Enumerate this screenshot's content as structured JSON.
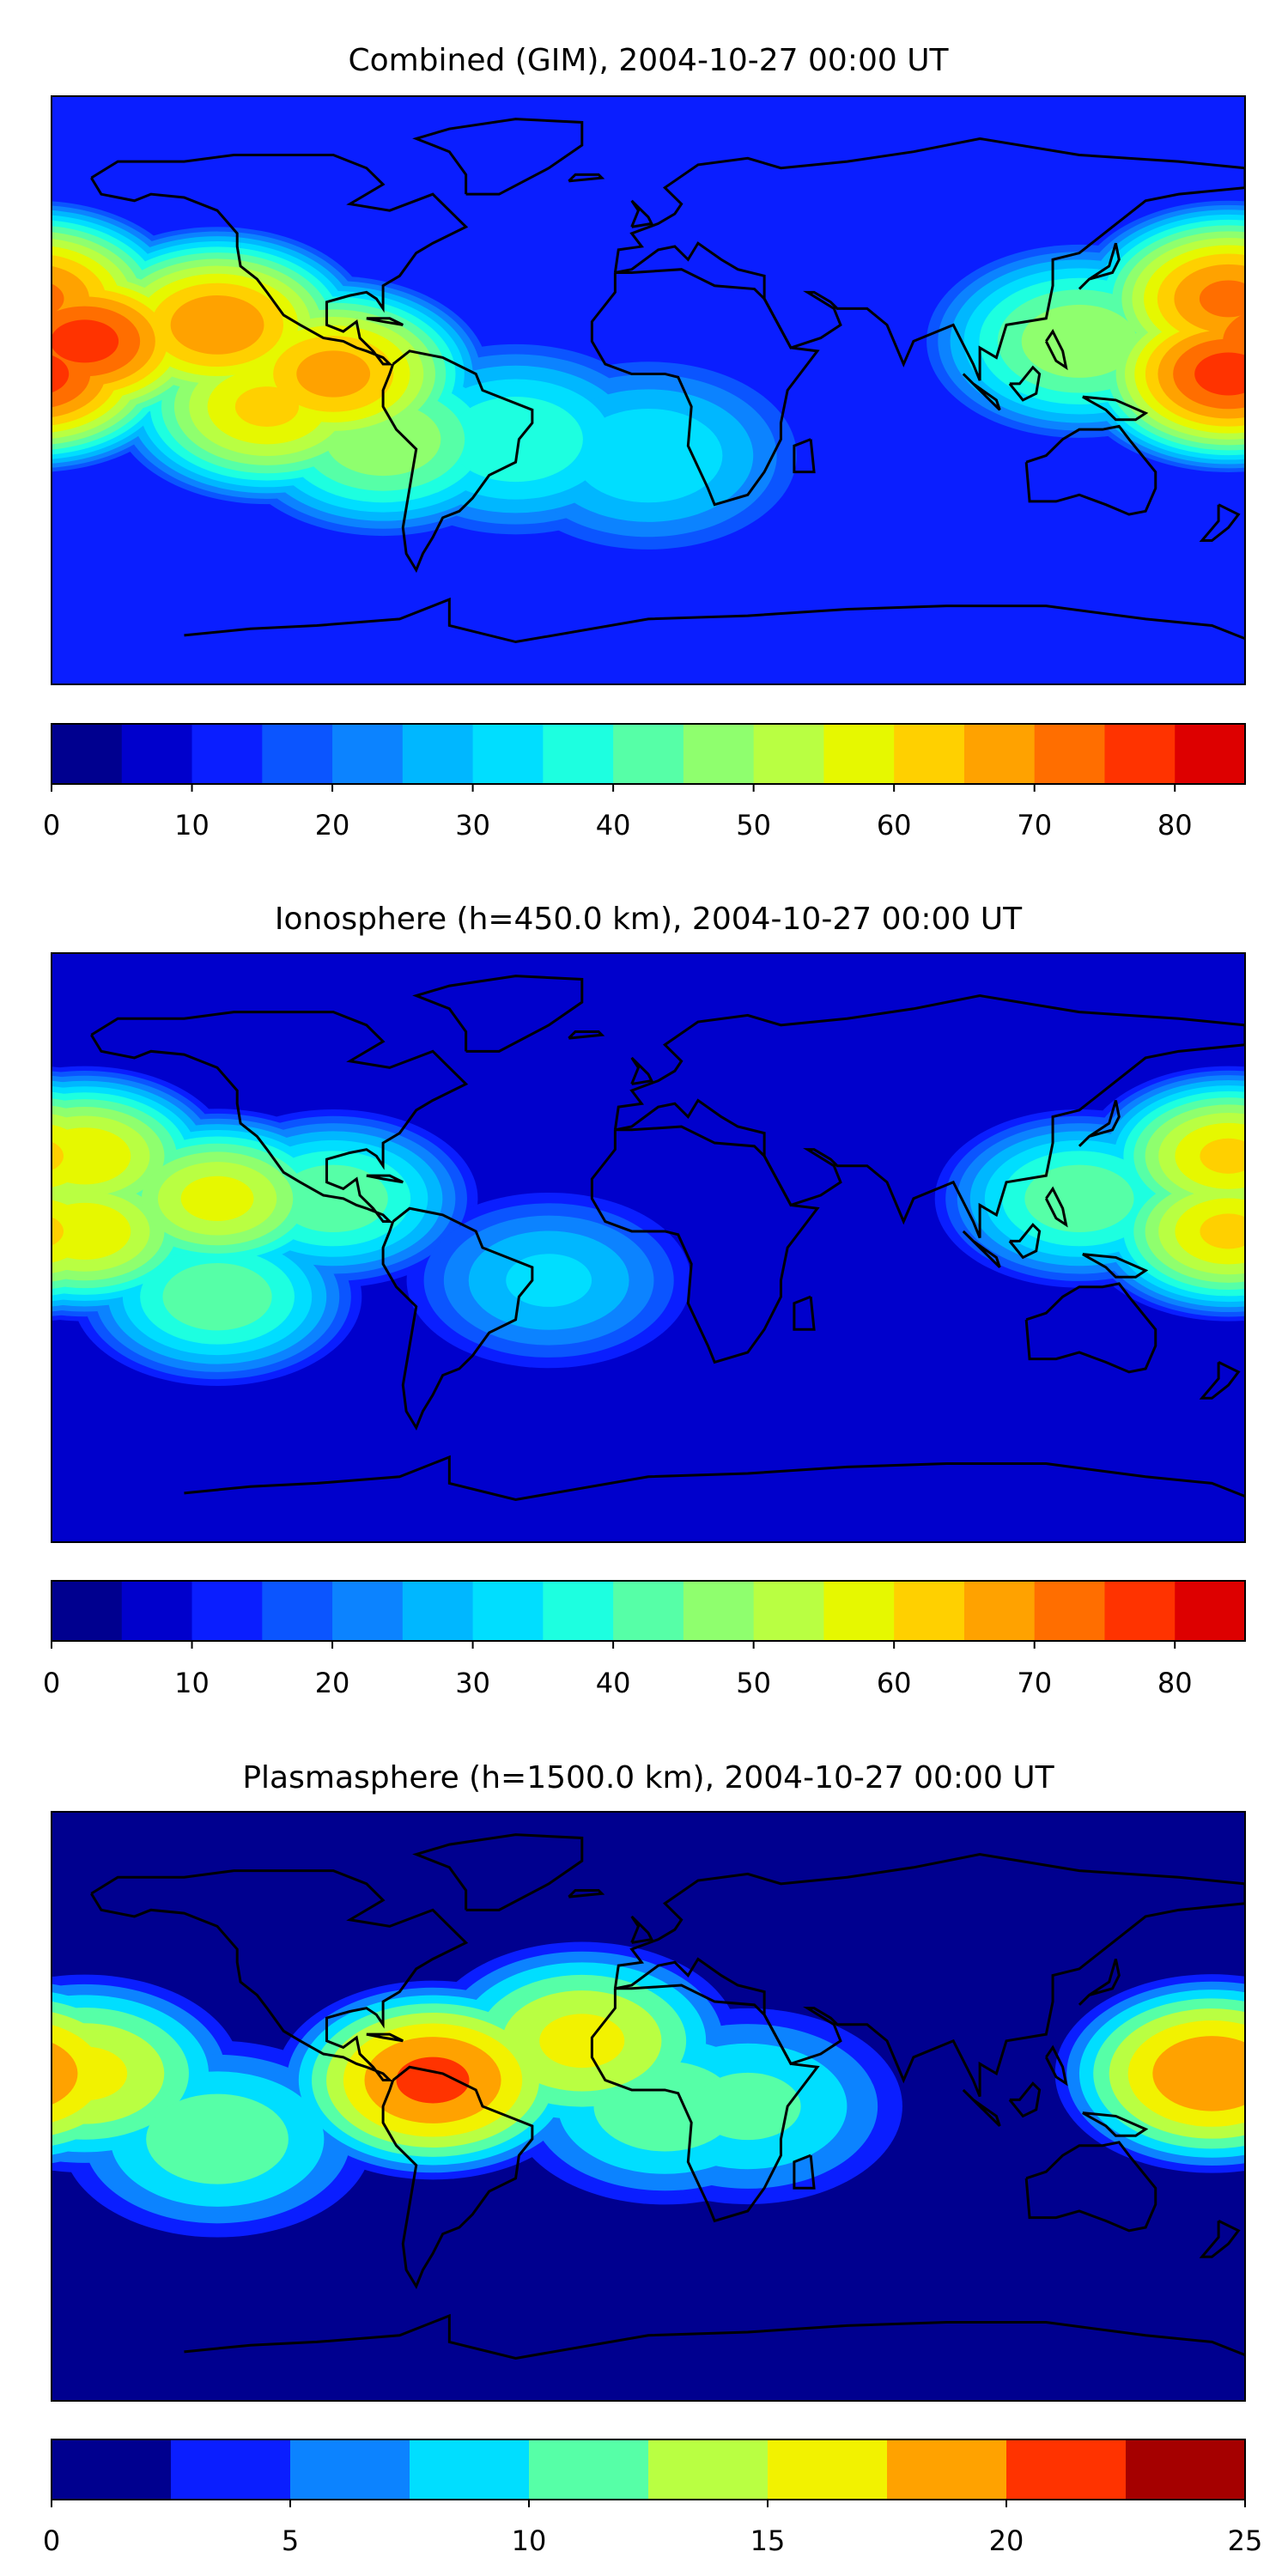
{
  "panels": [
    {
      "title": "Combined (GIM), 2004-10-27 00:00 UT",
      "colorbar": {
        "boundaries": [
          0,
          5,
          10,
          15,
          20,
          25,
          30,
          35,
          40,
          45,
          50,
          55,
          60,
          65,
          70,
          75,
          80,
          85
        ],
        "tick_values": [
          0,
          10,
          20,
          30,
          40,
          50,
          60,
          70,
          80
        ],
        "tick_labels": [
          "0",
          "10",
          "20",
          "30",
          "40",
          "50",
          "60",
          "70",
          "80"
        ],
        "colors": [
          "#00008f",
          "#0000cc",
          "#0a1eff",
          "#0b55ff",
          "#0c83ff",
          "#00b7ff",
          "#00deff",
          "#1dffe0",
          "#56ffa7",
          "#8fff6e",
          "#b9ff42",
          "#e6f800",
          "#ffd000",
          "#ffa200",
          "#ff6e00",
          "#ff3300",
          "#dd0000",
          "#9b0000"
        ]
      },
      "chart_data": {
        "type": "heatmap",
        "title": "Combined (GIM), 2004-10-27 00:00 UT",
        "color_range": [
          0,
          85
        ],
        "blobs": [
          {
            "lon": -170,
            "lat": 15,
            "value": 78
          },
          {
            "lon": -130,
            "lat": 20,
            "value": 70
          },
          {
            "lon": -95,
            "lat": 5,
            "value": 68
          },
          {
            "lon": -115,
            "lat": -5,
            "value": 62
          },
          {
            "lon": -80,
            "lat": -15,
            "value": 50
          },
          {
            "lon": -40,
            "lat": -15,
            "value": 40
          },
          {
            "lon": 0,
            "lat": -20,
            "value": 35
          },
          {
            "lon": 175,
            "lat": 28,
            "value": 72
          },
          {
            "lon": 175,
            "lat": 5,
            "value": 78
          },
          {
            "lon": 130,
            "lat": 15,
            "value": 50
          }
        ]
      }
    },
    {
      "title": "Ionosphere  (h=450.0 km), 2004-10-27 00:00 UT",
      "colorbar": {
        "boundaries": [
          0,
          5,
          10,
          15,
          20,
          25,
          30,
          35,
          40,
          45,
          50,
          55,
          60,
          65,
          70,
          75,
          80,
          85
        ],
        "tick_values": [
          0,
          10,
          20,
          30,
          40,
          50,
          60,
          70,
          80
        ],
        "tick_labels": [
          "0",
          "10",
          "20",
          "30",
          "40",
          "50",
          "60",
          "70",
          "80"
        ],
        "colors": [
          "#00008f",
          "#0000cc",
          "#0a1eff",
          "#0b55ff",
          "#0c83ff",
          "#00b7ff",
          "#00deff",
          "#1dffe0",
          "#56ffa7",
          "#8fff6e",
          "#b9ff42",
          "#e6f800",
          "#ffd000",
          "#ffa200",
          "#ff6e00",
          "#ff3300",
          "#dd0000",
          "#9b0000"
        ]
      },
      "chart_data": {
        "type": "heatmap",
        "title": "Ionosphere  (h=450.0 km), 2004-10-27 00:00 UT",
        "color_range": [
          0,
          85
        ],
        "blobs": [
          {
            "lon": -170,
            "lat": 28,
            "value": 60
          },
          {
            "lon": -170,
            "lat": 5,
            "value": 60
          },
          {
            "lon": -130,
            "lat": 15,
            "value": 58
          },
          {
            "lon": -95,
            "lat": 15,
            "value": 45
          },
          {
            "lon": -130,
            "lat": -15,
            "value": 45
          },
          {
            "lon": -30,
            "lat": -10,
            "value": 32
          },
          {
            "lon": 175,
            "lat": 28,
            "value": 62
          },
          {
            "lon": 175,
            "lat": 5,
            "value": 62
          },
          {
            "lon": 130,
            "lat": 15,
            "value": 45
          }
        ]
      }
    },
    {
      "title": "Plasmasphere (h=1500.0 km), 2004-10-27 00:00 UT",
      "colorbar": {
        "boundaries": [
          0,
          2.5,
          5,
          7.5,
          10,
          12.5,
          15,
          17.5,
          20,
          22.5,
          25
        ],
        "tick_values": [
          0,
          5,
          10,
          15,
          20,
          25
        ],
        "tick_labels": [
          "0",
          "5",
          "10",
          "15",
          "20",
          "25"
        ],
        "colors": [
          "#00008f",
          "#0a1eff",
          "#0c83ff",
          "#00deff",
          "#56ffa7",
          "#b9ff42",
          "#f2f200",
          "#ffa200",
          "#ff3300",
          "#a50000"
        ]
      },
      "chart_data": {
        "type": "heatmap",
        "title": "Plasmasphere (h=1500.0 km), 2004-10-27 00:00 UT",
        "color_range": [
          0,
          25
        ],
        "blobs": [
          {
            "lon": -65,
            "lat": 8,
            "value": 21
          },
          {
            "lon": -20,
            "lat": 20,
            "value": 16
          },
          {
            "lon": 5,
            "lat": 0,
            "value": 12
          },
          {
            "lon": 30,
            "lat": 0,
            "value": 11
          },
          {
            "lon": -170,
            "lat": 10,
            "value": 16
          },
          {
            "lon": 170,
            "lat": 10,
            "value": 20
          },
          {
            "lon": -130,
            "lat": -10,
            "value": 12
          }
        ]
      }
    }
  ]
}
